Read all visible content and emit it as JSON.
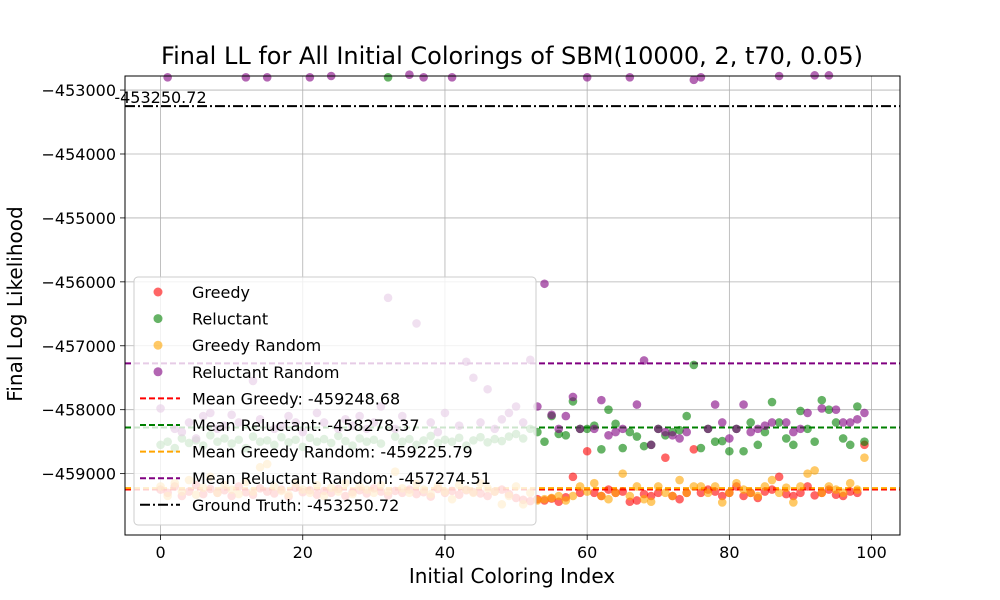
{
  "chart_data": {
    "type": "scatter",
    "title": "Final LL for All Initial Colorings of SBM(10000, 2, t70, 0.05)",
    "xlabel": "Initial Coloring Index",
    "ylabel": "Final Log Likelihood",
    "xlim": [
      -5,
      104
    ],
    "ylim": [
      -459960,
      -462780
    ],
    "x_ticks": [
      0,
      20,
      40,
      60,
      80,
      100
    ],
    "y_ticks": [
      -453000,
      -454000,
      -455000,
      -456000,
      -457000,
      -458000,
      -459000
    ],
    "x_tick_labels": [
      "0",
      "20",
      "40",
      "60",
      "80",
      "100"
    ],
    "y_tick_labels": [
      "−453000",
      "−454000",
      "−455000",
      "−456000",
      "−457000",
      "−458000",
      "−459000"
    ],
    "grid": true,
    "legend_position": "lower-left",
    "annotation": {
      "text": "-453250.72",
      "x": -6.5,
      "y": -453250.72
    },
    "series": [
      {
        "name": "Greedy",
        "kind": "scatter",
        "color": "#ff0000",
        "x": [
          0,
          1,
          2,
          3,
          4,
          5,
          6,
          7,
          8,
          9,
          10,
          11,
          12,
          13,
          14,
          15,
          16,
          17,
          18,
          19,
          20,
          21,
          22,
          23,
          24,
          25,
          26,
          27,
          28,
          29,
          30,
          31,
          32,
          33,
          34,
          35,
          36,
          37,
          38,
          39,
          40,
          41,
          42,
          43,
          44,
          45,
          46,
          47,
          48,
          49,
          50,
          51,
          52,
          53,
          54,
          55,
          56,
          57,
          58,
          59,
          60,
          61,
          62,
          63,
          64,
          65,
          66,
          67,
          68,
          69,
          70,
          71,
          72,
          73,
          74,
          75,
          76,
          77,
          78,
          79,
          80,
          81,
          82,
          83,
          84,
          85,
          86,
          87,
          88,
          89,
          90,
          91,
          92,
          93,
          94,
          95,
          96,
          97,
          98,
          99
        ],
        "y": [
          -459250,
          -459300,
          -459200,
          -459350,
          -459280,
          -459180,
          -459320,
          -459240,
          -459300,
          -459260,
          -459350,
          -459200,
          -459290,
          -459330,
          -459230,
          -459280,
          -459310,
          -459250,
          -459360,
          -459220,
          -459290,
          -459260,
          -459330,
          -459270,
          -459300,
          -459240,
          -459350,
          -459290,
          -459260,
          -459310,
          -459230,
          -459280,
          -459340,
          -459270,
          -459300,
          -459250,
          -459320,
          -459290,
          -459360,
          -459240,
          -459300,
          -459270,
          -459330,
          -459260,
          -459290,
          -459310,
          -459350,
          -459280,
          -459250,
          -459320,
          -459380,
          -459410,
          -459430,
          -459400,
          -459420,
          -459390,
          -459440,
          -459370,
          -459050,
          -459300,
          -458650,
          -459300,
          -459350,
          -459250,
          -459300,
          -459280,
          -459440,
          -459420,
          -459320,
          -459350,
          -459300,
          -458750,
          -459350,
          -459400,
          -459300,
          -458620,
          -459300,
          -459250,
          -459280,
          -459350,
          -459300,
          -459200,
          -459350,
          -459300,
          -459380,
          -459280,
          -459250,
          -459050,
          -459320,
          -459350,
          -459300,
          -459200,
          -459340,
          -459300,
          -459250,
          -459330,
          -459350,
          -459280,
          -459300,
          -458550
        ]
      },
      {
        "name": "Reluctant",
        "kind": "scatter",
        "color": "#008000",
        "x": [
          0,
          1,
          2,
          3,
          4,
          5,
          6,
          7,
          8,
          9,
          10,
          11,
          12,
          13,
          14,
          15,
          16,
          17,
          18,
          19,
          20,
          21,
          22,
          23,
          24,
          25,
          26,
          27,
          28,
          29,
          30,
          31,
          32,
          33,
          34,
          35,
          36,
          37,
          38,
          39,
          40,
          41,
          42,
          43,
          44,
          45,
          46,
          47,
          48,
          49,
          50,
          51,
          52,
          53,
          54,
          55,
          56,
          57,
          58,
          59,
          60,
          61,
          62,
          63,
          64,
          65,
          66,
          67,
          68,
          69,
          70,
          71,
          72,
          73,
          74,
          75,
          76,
          77,
          78,
          79,
          80,
          81,
          82,
          83,
          84,
          85,
          86,
          87,
          88,
          89,
          90,
          91,
          92,
          93,
          94,
          95,
          96,
          97,
          98,
          99
        ],
        "y": [
          -458550,
          -458500,
          -458600,
          -458450,
          -458520,
          -458480,
          -458560,
          -458400,
          -458500,
          -458450,
          -458530,
          -458470,
          -458600,
          -458420,
          -458500,
          -458480,
          -458550,
          -458430,
          -458510,
          -458470,
          -458580,
          -458440,
          -458500,
          -458460,
          -458520,
          -458410,
          -458490,
          -458560,
          -458450,
          -458500,
          -458470,
          -458530,
          -452800,
          -458420,
          -458500,
          -458460,
          -458550,
          -458480,
          -458410,
          -458520,
          -458470,
          -458500,
          -458440,
          -458560,
          -458480,
          -458430,
          -458510,
          -458460,
          -458490,
          -458420,
          -458380,
          -458450,
          -458300,
          -458350,
          -458500,
          -458100,
          -458380,
          -458400,
          -457870,
          -458300,
          -458300,
          -458250,
          -458620,
          -458000,
          -458220,
          -458600,
          -458350,
          -458420,
          -458570,
          -458550,
          -458300,
          -458400,
          -458350,
          -458320,
          -458100,
          -457300,
          -458600,
          -458300,
          -458500,
          -458490,
          -458650,
          -458300,
          -458650,
          -458200,
          -458550,
          -458350,
          -457880,
          -458200,
          -458450,
          -458550,
          -458020,
          -458300,
          -458500,
          -457850,
          -458000,
          -458200,
          -458450,
          -458550,
          -457950,
          -458500
        ]
      },
      {
        "name": "Greedy Random",
        "kind": "scatter",
        "color": "#ffa500",
        "x": [
          0,
          1,
          2,
          3,
          4,
          5,
          6,
          7,
          8,
          9,
          10,
          11,
          12,
          13,
          14,
          15,
          16,
          17,
          18,
          19,
          20,
          21,
          22,
          23,
          24,
          25,
          26,
          27,
          28,
          29,
          30,
          31,
          32,
          33,
          34,
          35,
          36,
          37,
          38,
          39,
          40,
          41,
          42,
          43,
          44,
          45,
          46,
          47,
          48,
          49,
          50,
          51,
          52,
          53,
          54,
          55,
          56,
          57,
          58,
          59,
          60,
          61,
          62,
          63,
          64,
          65,
          66,
          67,
          68,
          69,
          70,
          71,
          72,
          73,
          74,
          75,
          76,
          77,
          78,
          79,
          80,
          81,
          82,
          83,
          84,
          85,
          86,
          87,
          88,
          89,
          90,
          91,
          92,
          93,
          94,
          95,
          96,
          97,
          98,
          99
        ],
        "y": [
          -459200,
          -459350,
          -459150,
          -459280,
          -459100,
          -459330,
          -459220,
          -459050,
          -459300,
          -459180,
          -459250,
          -459320,
          -459130,
          -459280,
          -458900,
          -458850,
          -459200,
          -459270,
          -459330,
          -459150,
          -459250,
          -459300,
          -459180,
          -459350,
          -459220,
          -459280,
          -459150,
          -459320,
          -459200,
          -459250,
          -459300,
          -459180,
          -459280,
          -458970,
          -459230,
          -459300,
          -459160,
          -459250,
          -459320,
          -459200,
          -459280,
          -459400,
          -459180,
          -459250,
          -459300,
          -459150,
          -459230,
          -459280,
          -459480,
          -459350,
          -459200,
          -459480,
          -459300,
          -459420,
          -459400,
          -459380,
          -459350,
          -459420,
          -459350,
          -459200,
          -459280,
          -459150,
          -459350,
          -459400,
          -459300,
          -459000,
          -459350,
          -459200,
          -459400,
          -459440,
          -459200,
          -459300,
          -459350,
          -459100,
          -459300,
          -459200,
          -459200,
          -459300,
          -459200,
          -459450,
          -459300,
          -459150,
          -459250,
          -459300,
          -459350,
          -459200,
          -459100,
          -459300,
          -459220,
          -459450,
          -459200,
          -459000,
          -458950,
          -459300,
          -459200,
          -459250,
          -459300,
          -459150,
          -459250,
          -458750
        ]
      },
      {
        "name": "Reluctant Random",
        "kind": "scatter",
        "color": "#800080",
        "x": [
          0,
          1,
          2,
          3,
          4,
          5,
          6,
          7,
          8,
          9,
          10,
          11,
          12,
          13,
          14,
          15,
          16,
          17,
          18,
          19,
          20,
          21,
          22,
          23,
          24,
          25,
          26,
          27,
          28,
          29,
          30,
          31,
          32,
          33,
          34,
          35,
          36,
          37,
          38,
          39,
          40,
          41,
          42,
          43,
          44,
          45,
          46,
          47,
          48,
          49,
          50,
          51,
          52,
          53,
          54,
          55,
          56,
          57,
          58,
          59,
          60,
          61,
          62,
          63,
          64,
          65,
          66,
          67,
          68,
          69,
          70,
          71,
          72,
          73,
          74,
          75,
          76,
          77,
          78,
          79,
          80,
          81,
          82,
          83,
          84,
          85,
          86,
          87,
          88,
          89,
          90,
          91,
          92,
          93,
          94,
          95,
          96,
          97,
          98,
          99
        ],
        "y": [
          -457980,
          -452800,
          -458300,
          -458350,
          -458200,
          -458450,
          -458100,
          -458050,
          -458300,
          -458250,
          -458080,
          -458200,
          -452800,
          -457550,
          -458150,
          -452800,
          -458300,
          -458250,
          -458100,
          -458200,
          -458350,
          -452800,
          -458050,
          -458200,
          -452780,
          -458300,
          -458150,
          -458250,
          -458100,
          -458300,
          -458200,
          -457950,
          -456250,
          -458300,
          -458100,
          -452760,
          -456650,
          -452800,
          -458200,
          -458350,
          -458050,
          -452800,
          -458250,
          -457250,
          -457500,
          -458200,
          -457680,
          -458300,
          -458150,
          -458050,
          -457950,
          -458200,
          -457220,
          -457950,
          -456030,
          -458080,
          -458300,
          -458100,
          -457800,
          -458300,
          -452800,
          -458300,
          -457850,
          -458400,
          -458350,
          -458300,
          -452800,
          -457920,
          -457230,
          -458550,
          -458300,
          -458350,
          -458400,
          -458450,
          -458350,
          -452840,
          -452800,
          -458300,
          -457920,
          -458200,
          -458450,
          -458300,
          -457920,
          -458350,
          -458300,
          -458250,
          -458200,
          -452780,
          -458200,
          -458350,
          -458300,
          -458050,
          -452770,
          -457980,
          -452770,
          -458000,
          -458200,
          -458200,
          -458150,
          -458050
        ]
      },
      {
        "name": "Mean Greedy: -459248.68",
        "kind": "hline",
        "value": -459248.68,
        "color": "#ff0000",
        "dash": "dashed"
      },
      {
        "name": "Mean Reluctant: -458278.37",
        "kind": "hline",
        "value": -458278.37,
        "color": "#008000",
        "dash": "dashed"
      },
      {
        "name": "Mean Greedy Random: -459225.79",
        "kind": "hline",
        "value": -459225.79,
        "color": "#ffa500",
        "dash": "dashed"
      },
      {
        "name": "Mean Reluctant Random: -457274.51",
        "kind": "hline",
        "value": -457274.51,
        "color": "#800080",
        "dash": "dashed"
      },
      {
        "name": "Ground Truth: -453250.72",
        "kind": "hline",
        "value": -453250.72,
        "color": "#000000",
        "dash": "dashdot"
      }
    ]
  }
}
